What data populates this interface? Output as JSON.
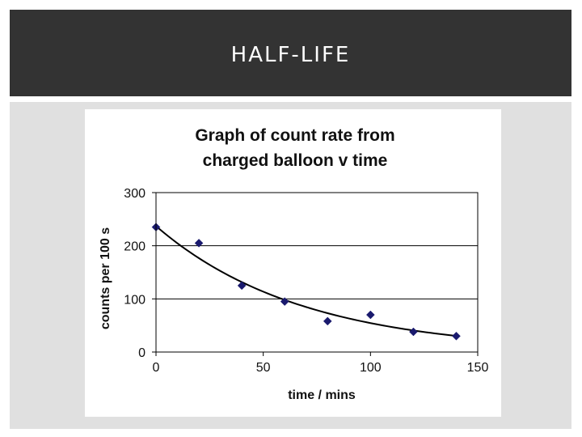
{
  "slide": {
    "title": "HALF-LIFE"
  },
  "chart_data": {
    "type": "scatter",
    "title_lines": [
      "Graph of count rate from",
      "charged balloon  v time"
    ],
    "xlabel": "time / mins",
    "ylabel": "counts per 100 s",
    "xlim": [
      0,
      150
    ],
    "ylim": [
      0,
      300
    ],
    "xticks": [
      0,
      50,
      100,
      150
    ],
    "yticks": [
      0,
      100,
      200,
      300
    ],
    "grid": "horizontal",
    "legend": "none",
    "series": [
      {
        "x": [
          0,
          20,
          40,
          60,
          80,
          100,
          120,
          140
        ],
        "y": [
          235,
          205,
          125,
          95,
          58,
          70,
          38,
          30
        ],
        "marker": "diamond",
        "color": "#1a1a6e"
      }
    ],
    "trendline": {
      "type": "exponential",
      "a": 237,
      "b": -0.0147,
      "color": "#000000"
    }
  }
}
